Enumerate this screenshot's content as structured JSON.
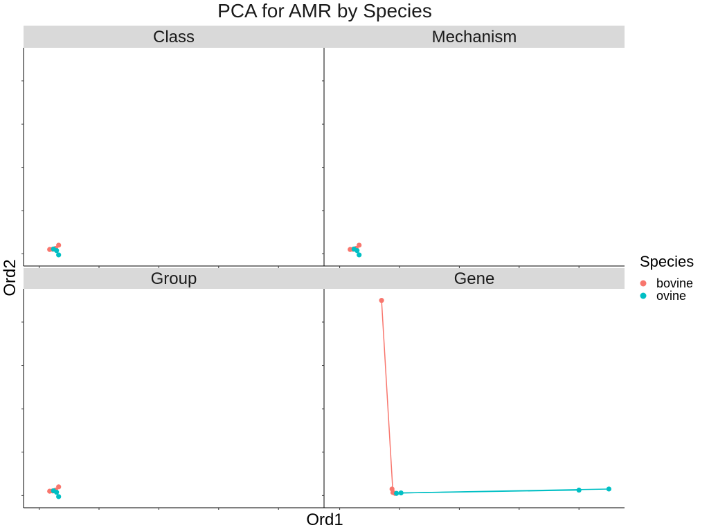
{
  "title": "PCA for AMR by Species",
  "xlabel": "Ord1",
  "ylabel": "Ord2",
  "legend": {
    "title": "Species",
    "items": [
      {
        "label": "bovine",
        "color": "#F8766D"
      },
      {
        "label": "ovine",
        "color": "#00BFC4"
      }
    ]
  },
  "chart_data": [
    {
      "panel": "Class",
      "type": "scatter",
      "series": [
        {
          "name": "bovine",
          "color": "#F8766D",
          "points": [
            [
              0.035,
              0.02
            ],
            [
              0.045,
              0.021
            ],
            [
              0.055,
              0.025
            ],
            [
              0.065,
              0.04
            ]
          ],
          "centroid": [
            0.055,
            0.024
          ]
        },
        {
          "name": "ovine",
          "color": "#00BFC4",
          "points": [
            [
              0.048,
              0.022
            ],
            [
              0.058,
              0.015
            ],
            [
              0.065,
              -0.005
            ]
          ],
          "centroid": [
            0.055,
            0.024
          ]
        }
      ]
    },
    {
      "panel": "Mechanism",
      "type": "scatter",
      "series": [
        {
          "name": "bovine",
          "color": "#F8766D",
          "points": [
            [
              0.035,
              0.02
            ],
            [
              0.045,
              0.021
            ],
            [
              0.055,
              0.025
            ],
            [
              0.065,
              0.04
            ]
          ],
          "centroid": [
            0.055,
            0.024
          ]
        },
        {
          "name": "ovine",
          "color": "#00BFC4",
          "points": [
            [
              0.048,
              0.022
            ],
            [
              0.058,
              0.015
            ],
            [
              0.065,
              -0.005
            ]
          ],
          "centroid": [
            0.055,
            0.024
          ]
        }
      ]
    },
    {
      "panel": "Group",
      "type": "scatter",
      "series": [
        {
          "name": "bovine",
          "color": "#F8766D",
          "points": [
            [
              0.035,
              0.02
            ],
            [
              0.045,
              0.021
            ],
            [
              0.055,
              0.025
            ],
            [
              0.065,
              0.04
            ]
          ],
          "centroid": [
            0.055,
            0.024
          ]
        },
        {
          "name": "ovine",
          "color": "#00BFC4",
          "points": [
            [
              0.048,
              0.022
            ],
            [
              0.058,
              0.015
            ],
            [
              0.065,
              -0.005
            ]
          ],
          "centroid": [
            0.055,
            0.024
          ]
        }
      ]
    },
    {
      "panel": "Gene",
      "type": "scatter",
      "series": [
        {
          "name": "bovine",
          "color": "#F8766D",
          "points": [
            [
              0.14,
              0.9
            ],
            [
              0.175,
              0.03
            ],
            [
              0.178,
              0.014
            ],
            [
              0.185,
              0.01
            ]
          ],
          "centroid": [
            0.178,
            0.014
          ]
        },
        {
          "name": "ovine",
          "color": "#00BFC4",
          "points": [
            [
              0.19,
              0.01
            ],
            [
              0.205,
              0.012
            ],
            [
              0.8,
              0.025
            ],
            [
              0.9,
              0.03
            ]
          ],
          "centroid": [
            0.205,
            0.012
          ]
        }
      ]
    }
  ],
  "axes": {
    "xlim": [
      -0.05,
      0.95
    ],
    "ylim": [
      -0.05,
      0.95
    ],
    "xticks": [
      0.0,
      0.2,
      0.4,
      0.6,
      0.8
    ],
    "yticks": [
      0.0,
      0.2,
      0.4,
      0.6,
      0.8
    ],
    "tick_labels_shown": false,
    "grid": false,
    "facet_layout": "2x2",
    "legend_position": "right"
  }
}
